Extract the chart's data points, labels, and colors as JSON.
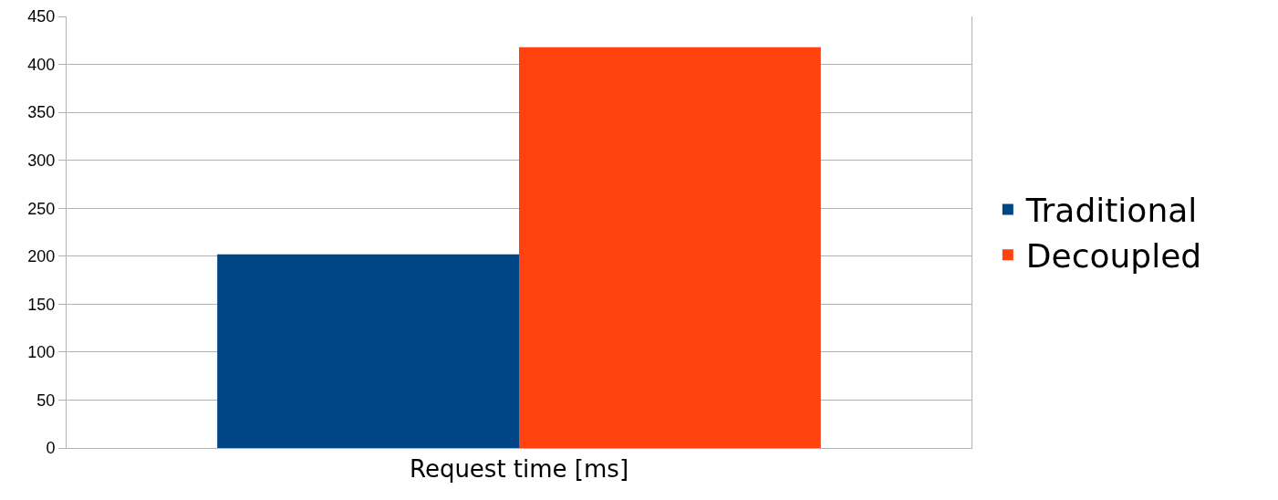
{
  "chart_data": {
    "type": "bar",
    "categories": [
      "Request time [ms]"
    ],
    "series": [
      {
        "name": "Traditional",
        "color": "#004586",
        "values": [
          202
        ]
      },
      {
        "name": "Decoupled",
        "color": "#ff420e",
        "values": [
          418
        ]
      }
    ],
    "ylim": [
      0,
      450
    ],
    "yticks": [
      0,
      50,
      100,
      150,
      200,
      250,
      300,
      350,
      400,
      450
    ],
    "grid": "y",
    "legend": "right"
  }
}
